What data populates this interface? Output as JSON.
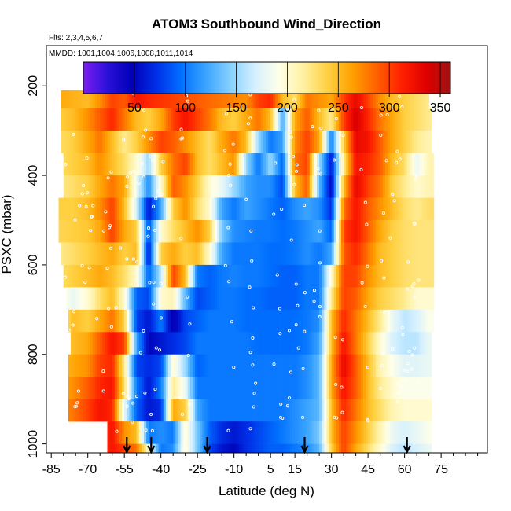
{
  "chart_data": {
    "type": "heatmap",
    "title": "ATOM3 Southbound Wind_Direction",
    "flights_label": "Flts: 2,3,4,5,6,7",
    "dates_label": "MMDD: 1001,1004,1006,1008,1011,1014",
    "xlabel": "Latitude (deg N)",
    "ylabel": "PSXC (mbar)",
    "xlim": [
      -87,
      94
    ],
    "ylim": [
      1020,
      110
    ],
    "x_ticks": [
      -85,
      -70,
      -55,
      -40,
      -25,
      -10,
      5,
      15,
      30,
      45,
      60,
      75
    ],
    "x_tick_labels": [
      "-85",
      "-70",
      "-55",
      "-40",
      "-25",
      "-10",
      "5",
      "15",
      "30",
      "45",
      "60",
      "75"
    ],
    "y_ticks": [
      200,
      400,
      600,
      800,
      1000
    ],
    "y_tick_labels": [
      "200",
      "400",
      "600",
      "800",
      "1000"
    ],
    "colorbar": {
      "range": [
        0,
        360
      ],
      "ticks": [
        50,
        100,
        150,
        200,
        250,
        300,
        350
      ],
      "tick_labels": [
        "50",
        "100",
        "150",
        "200",
        "250",
        "300",
        "350"
      ],
      "colors": [
        "#7a1ef0",
        "#2a10d8",
        "#0000b8",
        "#0030e8",
        "#0070ff",
        "#3aa4ff",
        "#86d0ff",
        "#d4f0ff",
        "#ffffe8",
        "#fff0a0",
        "#ffd040",
        "#ffa000",
        "#ff6000",
        "#ff2000",
        "#e00000",
        "#a01010"
      ]
    },
    "level_bands_mbar": [
      [
        170,
        210
      ],
      [
        210,
        250
      ],
      [
        250,
        300
      ],
      [
        300,
        350
      ],
      [
        350,
        400
      ],
      [
        400,
        450
      ],
      [
        450,
        500
      ],
      [
        500,
        550
      ],
      [
        550,
        600
      ],
      [
        600,
        650
      ],
      [
        650,
        700
      ],
      [
        700,
        750
      ],
      [
        750,
        800
      ],
      [
        800,
        850
      ],
      [
        850,
        900
      ],
      [
        900,
        950
      ],
      [
        950,
        1000
      ],
      [
        1000,
        1020
      ]
    ],
    "band_lat_extents": [
      [
        -65,
        71
      ],
      [
        -81,
        70
      ],
      [
        -81,
        71
      ],
      [
        -81,
        71
      ],
      [
        -80,
        72
      ],
      [
        -80,
        72
      ],
      [
        -82,
        72
      ],
      [
        -82,
        72
      ],
      [
        -81,
        72
      ],
      [
        -80,
        72
      ],
      [
        -79,
        72
      ],
      [
        -78,
        72
      ],
      [
        -77,
        71
      ],
      [
        -78,
        71
      ],
      [
        -78,
        71
      ],
      [
        -78,
        71
      ],
      [
        -62,
        71
      ],
      [
        -62,
        71
      ]
    ],
    "field_nodes_lat": [
      -82,
      -76,
      -70,
      -65,
      -60,
      -55,
      -50,
      -45,
      -40,
      -35,
      -30,
      -25,
      -20,
      -15,
      -10,
      -5,
      0,
      5,
      10,
      15,
      20,
      25,
      30,
      35,
      40,
      45,
      50,
      55,
      60,
      65,
      70,
      72
    ],
    "field_rows": [
      [
        250,
        250,
        250,
        260,
        270,
        290,
        300,
        300,
        295,
        290,
        285,
        280,
        275,
        270,
        265,
        260,
        255,
        250,
        245,
        240,
        240,
        235,
        235,
        230,
        230,
        230,
        230,
        225,
        225,
        225,
        225,
        225
      ],
      [
        260,
        255,
        250,
        270,
        300,
        290,
        320,
        310,
        305,
        300,
        295,
        290,
        285,
        280,
        275,
        270,
        300,
        310,
        250,
        230,
        280,
        270,
        260,
        300,
        330,
        300,
        270,
        250,
        240,
        230,
        220,
        220
      ],
      [
        240,
        250,
        270,
        290,
        310,
        280,
        250,
        240,
        260,
        300,
        320,
        300,
        280,
        250,
        240,
        260,
        280,
        250,
        120,
        260,
        290,
        250,
        220,
        300,
        340,
        310,
        280,
        260,
        240,
        230,
        220,
        220
      ],
      [
        230,
        240,
        260,
        280,
        250,
        220,
        240,
        270,
        300,
        290,
        270,
        250,
        230,
        260,
        280,
        250,
        150,
        100,
        120,
        270,
        300,
        260,
        100,
        240,
        330,
        320,
        290,
        260,
        240,
        220,
        210,
        210
      ],
      [
        230,
        240,
        250,
        270,
        250,
        230,
        200,
        150,
        240,
        280,
        300,
        250,
        230,
        250,
        270,
        150,
        100,
        150,
        90,
        280,
        300,
        150,
        60,
        220,
        320,
        310,
        290,
        250,
        230,
        180,
        210,
        210
      ],
      [
        220,
        230,
        240,
        260,
        280,
        260,
        180,
        110,
        200,
        290,
        270,
        240,
        200,
        180,
        150,
        120,
        110,
        110,
        80,
        250,
        290,
        130,
        50,
        250,
        330,
        300,
        280,
        240,
        220,
        200,
        210,
        210
      ],
      [
        240,
        240,
        250,
        270,
        300,
        250,
        170,
        60,
        120,
        240,
        270,
        230,
        200,
        120,
        100,
        120,
        110,
        100,
        90,
        110,
        120,
        110,
        70,
        280,
        320,
        290,
        270,
        250,
        230,
        220,
        230,
        230
      ],
      [
        235,
        240,
        245,
        260,
        300,
        260,
        240,
        80,
        200,
        230,
        250,
        270,
        240,
        140,
        110,
        105,
        100,
        100,
        95,
        100,
        110,
        120,
        90,
        300,
        320,
        290,
        260,
        240,
        230,
        225,
        225,
        225
      ],
      [
        220,
        230,
        240,
        250,
        260,
        240,
        250,
        60,
        240,
        260,
        240,
        250,
        200,
        120,
        100,
        100,
        100,
        95,
        95,
        100,
        110,
        100,
        120,
        290,
        310,
        280,
        250,
        240,
        230,
        225,
        225,
        225
      ],
      [
        230,
        240,
        250,
        260,
        250,
        230,
        200,
        90,
        160,
        300,
        250,
        100,
        90,
        100,
        105,
        100,
        100,
        95,
        90,
        90,
        100,
        100,
        200,
        300,
        300,
        270,
        250,
        240,
        230,
        225,
        225,
        225
      ],
      [
        200,
        180,
        200,
        230,
        250,
        200,
        90,
        80,
        200,
        210,
        130,
        80,
        90,
        100,
        100,
        95,
        95,
        90,
        90,
        90,
        100,
        100,
        220,
        300,
        290,
        260,
        240,
        230,
        220,
        200,
        200,
        200
      ],
      [
        210,
        250,
        240,
        260,
        280,
        240,
        80,
        60,
        100,
        40,
        80,
        90,
        100,
        100,
        100,
        95,
        95,
        95,
        95,
        95,
        100,
        110,
        250,
        310,
        280,
        250,
        220,
        180,
        160,
        170,
        190,
        190
      ],
      [
        240,
        250,
        260,
        290,
        320,
        300,
        120,
        50,
        60,
        70,
        80,
        100,
        100,
        100,
        100,
        100,
        95,
        95,
        95,
        95,
        100,
        120,
        250,
        320,
        280,
        240,
        200,
        170,
        160,
        160,
        180,
        180
      ],
      [
        250,
        260,
        270,
        300,
        310,
        220,
        80,
        70,
        80,
        200,
        150,
        90,
        100,
        100,
        100,
        100,
        100,
        100,
        100,
        100,
        110,
        130,
        260,
        330,
        290,
        250,
        210,
        190,
        175,
        175,
        180,
        180
      ],
      [
        260,
        270,
        290,
        310,
        320,
        230,
        100,
        60,
        100,
        220,
        180,
        100,
        100,
        100,
        100,
        100,
        100,
        100,
        100,
        100,
        110,
        130,
        260,
        320,
        290,
        250,
        220,
        200,
        190,
        190,
        190,
        190
      ],
      [
        270,
        280,
        300,
        320,
        310,
        180,
        90,
        60,
        70,
        260,
        240,
        120,
        100,
        100,
        100,
        100,
        100,
        100,
        100,
        110,
        120,
        130,
        250,
        310,
        280,
        250,
        230,
        210,
        200,
        200,
        200,
        200
      ],
      [
        250,
        250,
        250,
        300,
        320,
        270,
        250,
        100,
        110,
        100,
        200,
        140,
        90,
        70,
        60,
        70,
        80,
        90,
        100,
        110,
        120,
        140,
        250,
        300,
        270,
        240,
        210,
        180,
        170,
        180,
        190,
        190
      ],
      [
        250,
        250,
        250,
        300,
        320,
        300,
        280,
        200,
        100,
        110,
        200,
        140,
        80,
        60,
        50,
        70,
        80,
        90,
        90,
        100,
        110,
        130,
        240,
        300,
        260,
        230,
        200,
        170,
        160,
        170,
        180,
        180
      ]
    ],
    "sonde_arrow_lats": [
      -54,
      -44,
      -21,
      19,
      61
    ]
  }
}
